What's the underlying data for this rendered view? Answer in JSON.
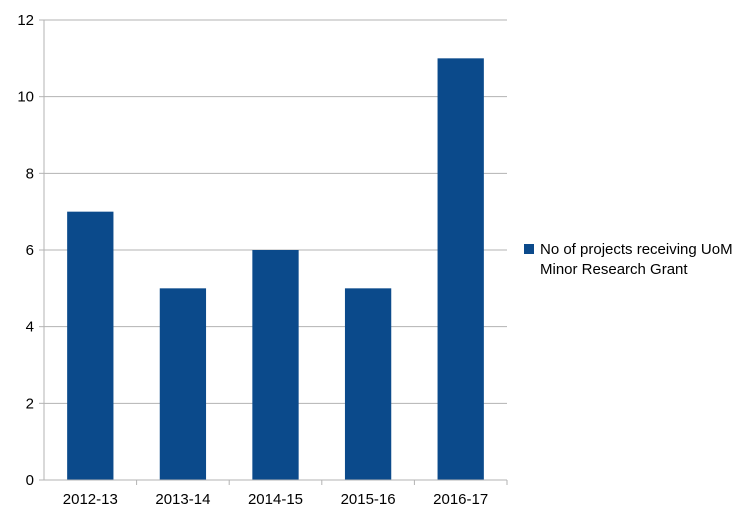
{
  "chart_data": {
    "type": "bar",
    "categories": [
      "2012-13",
      "2013-14",
      "2014-15",
      "2015-16",
      "2016-17"
    ],
    "series": [
      {
        "name": "No of projects receiving UoM Minor Research Grant",
        "values": [
          7,
          5,
          6,
          5,
          11
        ]
      }
    ],
    "title": "",
    "xlabel": "",
    "ylabel": "",
    "ylim": [
      0,
      12
    ],
    "yticks": [
      0,
      2,
      4,
      6,
      8,
      10,
      12
    ],
    "grid": true,
    "legend": "right",
    "colors": {
      "bar": "#0b4a8b",
      "grid": "#b3b3b3",
      "axis": "#b3b3b3"
    }
  }
}
